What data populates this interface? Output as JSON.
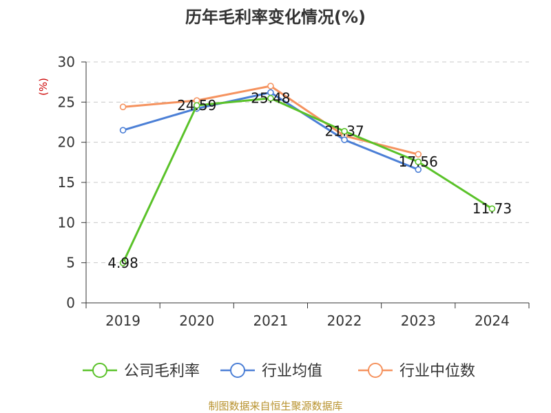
{
  "chart_data": {
    "type": "line",
    "title": "历年毛利率变化情况(%)",
    "ylabel": "(%)",
    "categories": [
      "2019",
      "2020",
      "2021",
      "2022",
      "2023",
      "2024"
    ],
    "ylim": [
      0,
      30
    ],
    "yticks": [
      0,
      5,
      10,
      15,
      20,
      25,
      30
    ],
    "grid": true,
    "legend_position": "bottom",
    "series": [
      {
        "name": "公司毛利率",
        "color": "#5ac229",
        "values": [
          4.98,
          24.59,
          25.48,
          21.37,
          17.56,
          11.73
        ],
        "labels": [
          "4.98",
          "24.59",
          "25.48",
          "21.37",
          "17.56",
          "11.73"
        ]
      },
      {
        "name": "行业均值",
        "color": "#4b7fd6",
        "values": [
          21.5,
          24.2,
          26.2,
          20.3,
          16.6,
          null
        ]
      },
      {
        "name": "行业中位数",
        "color": "#f5925e",
        "values": [
          24.4,
          25.2,
          27.0,
          20.8,
          18.5,
          null
        ]
      }
    ]
  },
  "source": "制图数据来自恒生聚源数据库"
}
